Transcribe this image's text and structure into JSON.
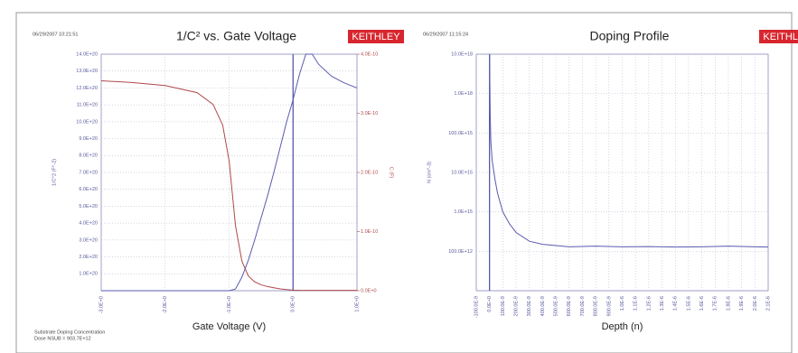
{
  "chart_data": [
    {
      "type": "line",
      "title": "1/C² vs. Gate Voltage",
      "timestamp": "06/29/2007 10:21:51",
      "brand": "KEITHLEY",
      "x_label": "Gate Voltage (V)",
      "y_label": "1/C^2 (F^-2)",
      "y2_label": "C (F)",
      "annotations": [
        "Substrate Doping Concentration",
        "Dose NSUB = 903.7E+12"
      ],
      "xlim": [
        -3,
        1
      ],
      "xticks": [
        {
          "value": -3,
          "label": "-3.0E+0"
        },
        {
          "value": -2,
          "label": "-2.0E+0"
        },
        {
          "value": -1,
          "label": "-1.0E+0"
        },
        {
          "value": 0,
          "label": "0.0E+0"
        },
        {
          "value": 1,
          "label": "1.0E+0"
        }
      ],
      "ylim": [
        0,
        1.4e+21
      ],
      "yticks": [
        {
          "value": 1e+20,
          "label": "1.0E+20"
        },
        {
          "value": 2e+20,
          "label": "2.0E+20"
        },
        {
          "value": 3e+20,
          "label": "3.0E+20"
        },
        {
          "value": 4e+20,
          "label": "4.0E+20"
        },
        {
          "value": 5e+20,
          "label": "5.0E+20"
        },
        {
          "value": 6e+20,
          "label": "6.0E+20"
        },
        {
          "value": 7e+20,
          "label": "7.0E+20"
        },
        {
          "value": 8e+20,
          "label": "8.0E+20"
        },
        {
          "value": 9e+20,
          "label": "9.0E+20"
        },
        {
          "value": 1e+21,
          "label": "10.0E+20"
        },
        {
          "value": 1.1e+21,
          "label": "11.0E+20"
        },
        {
          "value": 1.2e+21,
          "label": "12.0E+20"
        },
        {
          "value": 1.3e+21,
          "label": "13.0E+20"
        },
        {
          "value": 1.4e+21,
          "label": "14.0E+20"
        }
      ],
      "y2lim": [
        0,
        4e-10
      ],
      "y2ticks": [
        {
          "value": 0,
          "label": "0.0E+0"
        },
        {
          "value": 1e-10,
          "label": "1.0E-10"
        },
        {
          "value": 2e-10,
          "label": "2.0E-10"
        },
        {
          "value": 3e-10,
          "label": "3.0E-10"
        },
        {
          "value": 4e-10,
          "label": "4.0E-10"
        }
      ],
      "grid": true,
      "x": [
        -3,
        -2.5,
        -2,
        -1.5,
        -1.25,
        -1.1,
        -1,
        -0.9,
        -0.8,
        -0.7,
        -0.6,
        -0.5,
        -0.4,
        -0.3,
        -0.2,
        -0.1,
        0,
        0.1,
        0.2,
        0.3,
        0.4,
        0.6,
        0.8,
        1
      ],
      "series": [
        {
          "name": "1/C^2",
          "color": "#5a5ab0",
          "values": [
            0,
            0,
            0,
            0,
            0,
            0,
            0,
            1e+19,
            8e+19,
            1.8e+20,
            3e+20,
            4.3e+20,
            5.6e+20,
            7e+20,
            8.5e+20,
            1e+21,
            1.13e+21,
            1.28e+21,
            1.4e+21,
            1.4e+21,
            1.34e+21,
            1.27e+21,
            1.23e+21,
            1.2e+21
          ]
        },
        {
          "name": "C",
          "color": "#b04848",
          "axis": "y2",
          "values": [
            3.55e-10,
            3.52e-10,
            3.47e-10,
            3.35e-10,
            3.15e-10,
            2.8e-10,
            2.2e-10,
            1.1e-10,
            5e-11,
            2.5e-11,
            1.5e-11,
            1e-11,
            7e-12,
            5e-12,
            3e-12,
            2e-12,
            1e-12,
            5e-13,
            5e-13,
            5e-13,
            5e-13,
            5e-13,
            5e-13,
            5e-13
          ]
        }
      ]
    },
    {
      "type": "line",
      "title": "Doping Profile",
      "timestamp": "06/29/2007 11:15:24",
      "brand": "KEITHLEY",
      "x_label": "Depth (n)",
      "y_label": "N (cm^-3)",
      "ylog": true,
      "xlim": [
        -1e-07,
        2.1e-06
      ],
      "xticks": [
        {
          "value": -1e-07,
          "label": "-100.0E-9"
        },
        {
          "value": 0,
          "label": "0.0E+0"
        },
        {
          "value": 1e-07,
          "label": "100.0E-9"
        },
        {
          "value": 2e-07,
          "label": "200.0E-9"
        },
        {
          "value": 3e-07,
          "label": "300.0E-9"
        },
        {
          "value": 4e-07,
          "label": "400.0E-9"
        },
        {
          "value": 5e-07,
          "label": "500.0E-9"
        },
        {
          "value": 6e-07,
          "label": "600.0E-9"
        },
        {
          "value": 7e-07,
          "label": "700.0E-9"
        },
        {
          "value": 8e-07,
          "label": "800.0E-9"
        },
        {
          "value": 9e-07,
          "label": "900.0E-9"
        },
        {
          "value": 1e-06,
          "label": "1.0E-6"
        },
        {
          "value": 1.1e-06,
          "label": "1.1E-6"
        },
        {
          "value": 1.2e-06,
          "label": "1.2E-6"
        },
        {
          "value": 1.3e-06,
          "label": "1.3E-6"
        },
        {
          "value": 1.4e-06,
          "label": "1.4E-6"
        },
        {
          "value": 1.5e-06,
          "label": "1.5E-6"
        },
        {
          "value": 1.6e-06,
          "label": "1.6E-6"
        },
        {
          "value": 1.7e-06,
          "label": "1.7E-6"
        },
        {
          "value": 1.8e-06,
          "label": "1.8E-6"
        },
        {
          "value": 1.9e-06,
          "label": "1.9E-6"
        },
        {
          "value": 2e-06,
          "label": "2.0E-6"
        },
        {
          "value": 2.1e-06,
          "label": "2.1E-6"
        }
      ],
      "ylim": [
        10000000000000.0,
        1e+19
      ],
      "yticks": [
        {
          "value": 100000000000000.0,
          "label": "100.0E+12"
        },
        {
          "value": 1000000000000000.0,
          "label": "1.0E+15"
        },
        {
          "value": 1e+16,
          "label": "10.0E+15"
        },
        {
          "value": 1e+17,
          "label": "100.0E+15"
        },
        {
          "value": 1e+18,
          "label": "1.0E+18"
        },
        {
          "value": 1e+19,
          "label": "10.0E+18"
        }
      ],
      "grid": true,
      "x": [
        0,
        5e-09,
        1e-08,
        2e-08,
        4e-08,
        6e-08,
        1e-07,
        1.5e-07,
        2e-07,
        3e-07,
        4e-07,
        6e-07,
        8e-07,
        1e-06,
        1.2e-06,
        1.4e-06,
        1.6e-06,
        1.8e-06,
        2e-06,
        2.1e-06
      ],
      "series": [
        {
          "name": "N",
          "color": "#5a5ab0",
          "values": [
            1e+19,
            3e+17,
            6e+16,
            2e+16,
            7000000000000000.0,
            3000000000000000.0,
            1000000000000000.0,
            500000000000000.0,
            300000000000000.0,
            180000000000000.0,
            150000000000000.0,
            130000000000000.0,
            135000000000000.0,
            130000000000000.0,
            132000000000000.0,
            128000000000000.0,
            130000000000000.0,
            135000000000000.0,
            130000000000000.0,
            128000000000000.0
          ]
        }
      ]
    }
  ]
}
